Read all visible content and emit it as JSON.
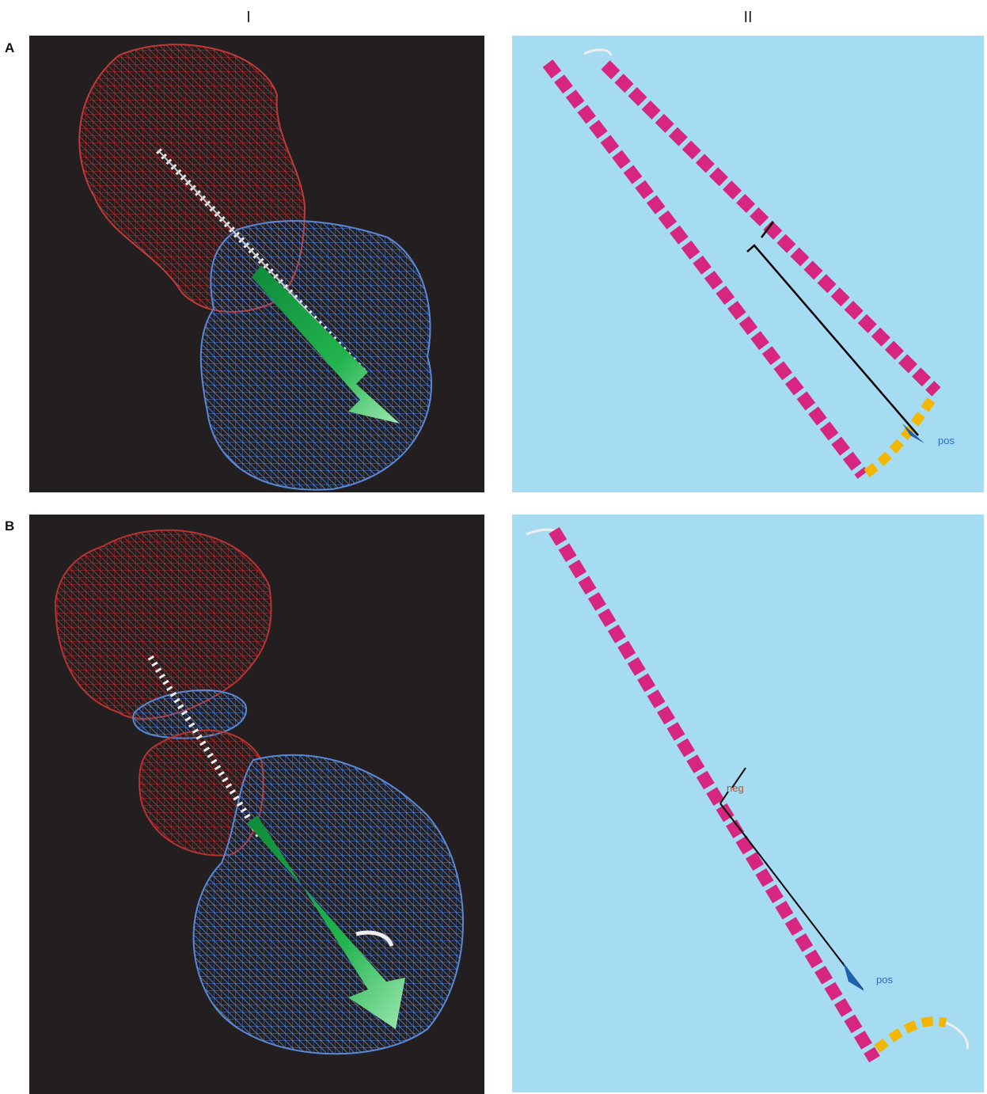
{
  "column_labels": [
    "I",
    "II"
  ],
  "rows": [
    {
      "label": "A",
      "annotations": [
        "pos"
      ]
    },
    {
      "label": "B",
      "annotations": [
        "neg",
        "pos"
      ]
    }
  ]
}
